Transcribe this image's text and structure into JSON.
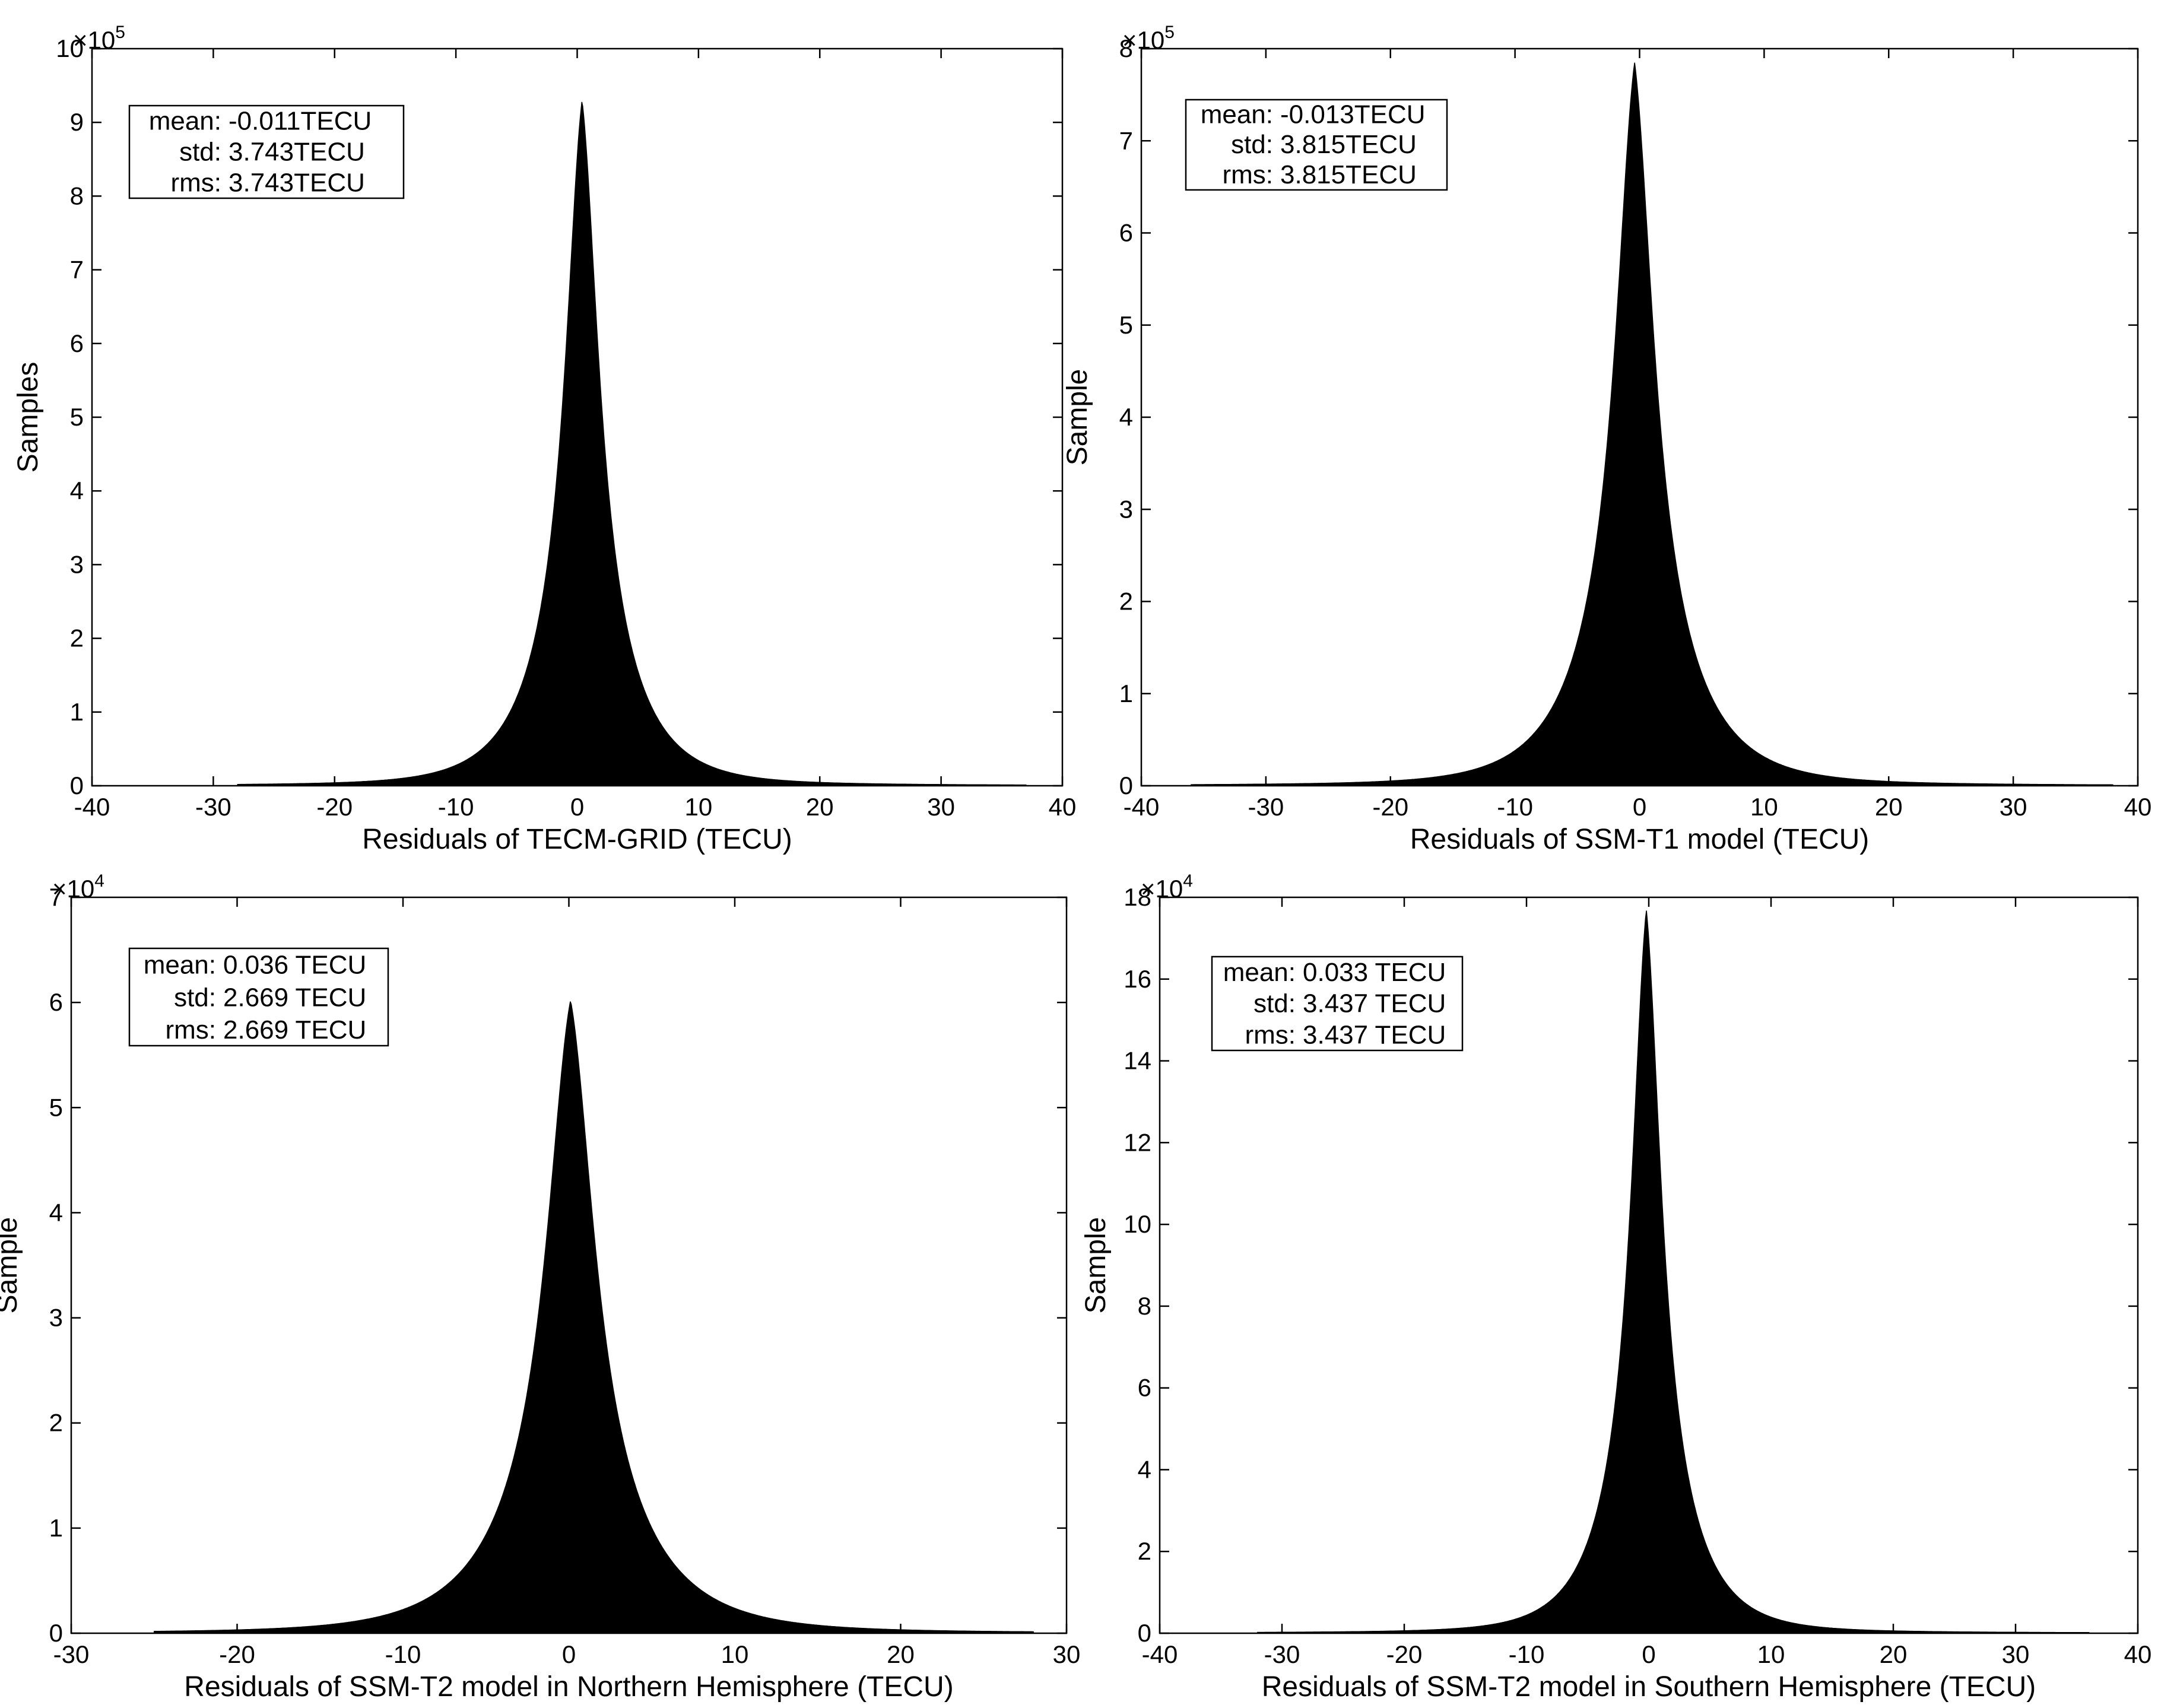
{
  "chart_data": [
    {
      "type": "bar",
      "title": "",
      "xlabel": "Residuals of TECM-GRID (TECU)",
      "ylabel": "Samples",
      "xlim": [
        -40,
        40
      ],
      "ylim": [
        0,
        10
      ],
      "y_multiplier": "×10",
      "y_exponent": "5",
      "xticks": [
        "-40",
        "-30",
        "-20",
        "-10",
        "0",
        "10",
        "20",
        "30",
        "40"
      ],
      "yticks": [
        "0",
        "1",
        "2",
        "3",
        "4",
        "5",
        "6",
        "7",
        "8",
        "9",
        "10"
      ],
      "grid": false,
      "distribution": {
        "peak_x": 0.4,
        "peak_y": 9.3,
        "shape": "heavy-tailed",
        "half_width_at_half_max": 1.7,
        "tail_x_min": -28,
        "tail_x_max": 37
      },
      "stats": [
        {
          "label": "mean:",
          "value": "-0.011TECU"
        },
        {
          "label": "std:",
          "value": "3.743TECU"
        },
        {
          "label": "rms:",
          "value": "3.743TECU"
        }
      ]
    },
    {
      "type": "bar",
      "title": "",
      "xlabel": "Residuals of SSM-T1 model (TECU)",
      "ylabel": "Sample",
      "xlim": [
        -40,
        40
      ],
      "ylim": [
        0,
        8
      ],
      "y_multiplier": "×10",
      "y_exponent": "5",
      "xticks": [
        "-40",
        "-30",
        "-20",
        "-10",
        "0",
        "10",
        "20",
        "30",
        "40"
      ],
      "yticks": [
        "0",
        "1",
        "2",
        "3",
        "4",
        "5",
        "6",
        "7",
        "8"
      ],
      "grid": false,
      "distribution": {
        "peak_x": -0.4,
        "peak_y": 7.85,
        "shape": "heavy-tailed",
        "half_width_at_half_max": 1.9,
        "tail_x_min": -36,
        "tail_x_max": 38
      },
      "stats": [
        {
          "label": "mean:",
          "value": "-0.013TECU"
        },
        {
          "label": "std:",
          "value": "3.815TECU"
        },
        {
          "label": "rms:",
          "value": "3.815TECU"
        }
      ]
    },
    {
      "type": "bar",
      "title": "",
      "xlabel": "Residuals of SSM-T2 model in Northern Hemisphere (TECU)",
      "ylabel": "Sample",
      "xlim": [
        -30,
        30
      ],
      "ylim": [
        0,
        7
      ],
      "y_multiplier": "×10",
      "y_exponent": "4",
      "xticks": [
        "-30",
        "-20",
        "-10",
        "0",
        "10",
        "20",
        "30"
      ],
      "yticks": [
        "0",
        "1",
        "2",
        "3",
        "4",
        "5",
        "6",
        "7"
      ],
      "grid": false,
      "distribution": {
        "peak_x": 0.1,
        "peak_y": 6.02,
        "shape": "heavy-tailed",
        "half_width_at_half_max": 1.8,
        "tail_x_min": -25,
        "tail_x_max": 28
      },
      "stats": [
        {
          "label": "mean:",
          "value": "0.036 TECU"
        },
        {
          "label": "std:",
          "value": "2.669 TECU"
        },
        {
          "label": "rms:",
          "value": "2.669 TECU"
        }
      ]
    },
    {
      "type": "bar",
      "title": "",
      "xlabel": "Residuals of SSM-T2 model in Southern Hemisphere (TECU)",
      "ylabel": "Sample",
      "xlim": [
        -40,
        40
      ],
      "ylim": [
        0,
        18
      ],
      "y_multiplier": "×10",
      "y_exponent": "4",
      "xticks": [
        "-40",
        "-30",
        "-20",
        "-10",
        "0",
        "10",
        "20",
        "30",
        "40"
      ],
      "yticks": [
        "0",
        "2",
        "4",
        "6",
        "8",
        "10",
        "12",
        "14",
        "16",
        "18"
      ],
      "grid": false,
      "distribution": {
        "peak_x": -0.2,
        "peak_y": 17.7,
        "shape": "heavy-tailed",
        "half_width_at_half_max": 1.5,
        "tail_x_min": -32,
        "tail_x_max": 36
      },
      "stats": [
        {
          "label": "mean:",
          "value": "0.033 TECU"
        },
        {
          "label": "std:",
          "value": "3.437 TECU"
        },
        {
          "label": "rms:",
          "value": "3.437 TECU"
        }
      ]
    }
  ]
}
